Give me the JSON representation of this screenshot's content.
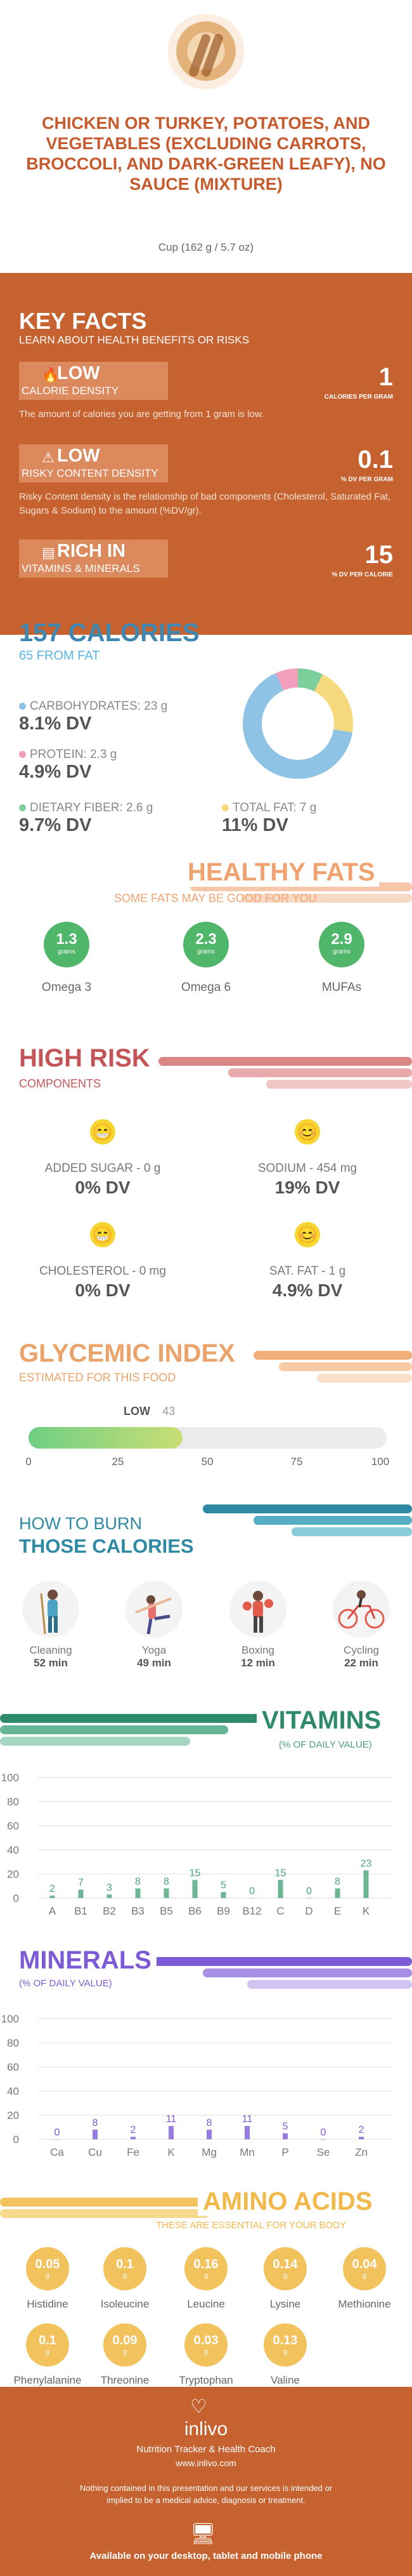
{
  "header": {
    "title": "Chicken or turkey, potatoes, and vegetables (excluding carrots, broccoli, and dark-green leafy), no sauce (mixture)",
    "serving": "Cup (162 g / 5.7 oz)"
  },
  "key_facts": {
    "title": "KEY FACTS",
    "subtitle": "LEARN ABOUT HEALTH BENEFITS OR RISKS",
    "items": [
      {
        "level": "LOW",
        "label": "CALORIE DENSITY",
        "value": "1",
        "unit": "CALORIES PER GRAM",
        "desc": "The amount of calories you are getting from 1 gram is low."
      },
      {
        "level": "LOW",
        "label": "RISKY CONTENT DENSITY",
        "value": "0.1",
        "unit": "% DV PER GRAM",
        "desc": "Risky Content density is the relationship of bad components (Cholesterol, Saturated Fat, Sugars & Sodium) to the amount (%DV/gr)."
      },
      {
        "level": "RICH IN",
        "label": "VITAMINS & MINERALS",
        "value": "15",
        "unit": "% DV PER CALORIE",
        "desc": ""
      }
    ]
  },
  "calories": {
    "title": "157 CALORIES",
    "subtitle": "65 FROM FAT",
    "macros": [
      {
        "label": "CARBOHYDRATES: 23 g",
        "dv": "8.1% DV",
        "color": "#8ec3e6"
      },
      {
        "label": "PROTEIN: 2.3 g",
        "dv": "4.9% DV",
        "color": "#f29fbd"
      },
      {
        "label": "DIETARY FIBER: 2.6 g",
        "dv": "9.7% DV",
        "color": "#7ccf9a"
      },
      {
        "label": "TOTAL FAT: 7 g",
        "dv": "11% DV",
        "color": "#f6d97c"
      }
    ],
    "donut": [
      {
        "name": "carbohydrates",
        "value": 23,
        "color": "#8ec3e6"
      },
      {
        "name": "protein",
        "value": 2.3,
        "color": "#f29fbd"
      },
      {
        "name": "fiber",
        "value": 2.6,
        "color": "#7ccf9a"
      },
      {
        "name": "fat",
        "value": 7,
        "color": "#f6d97c"
      }
    ]
  },
  "healthy_fats": {
    "title": "HEALTHY FATS",
    "subtitle": "SOME FATS MAY BE GOOD FOR YOU",
    "items": [
      {
        "value": "1.3",
        "unit": "grams",
        "name": "Omega 3"
      },
      {
        "value": "2.3",
        "unit": "grams",
        "name": "Omega 6"
      },
      {
        "value": "2.9",
        "unit": "grams",
        "name": "MUFAs"
      }
    ]
  },
  "high_risk": {
    "title": "HIGH RISK",
    "subtitle": "COMPONENTS",
    "items": [
      {
        "label": "ADDED SUGAR - 0 g",
        "dv": "0% DV",
        "icon": "grin-icon"
      },
      {
        "label": "SODIUM - 454 mg",
        "dv": "19% DV",
        "icon": "smile-icon"
      },
      {
        "label": "CHOLESTEROL - 0 mg",
        "dv": "0% DV",
        "icon": "grin-icon"
      },
      {
        "label": "SAT. FAT - 1 g",
        "dv": "4.9% DV",
        "icon": "smile-icon"
      }
    ]
  },
  "glycemic": {
    "title": "GLYCEMIC INDEX",
    "subtitle": "ESTIMATED FOR THIS FOOD",
    "level": "LOW",
    "value": 43,
    "value_text": "43",
    "ticks": [
      "0",
      "25",
      "50",
      "75",
      "100"
    ]
  },
  "burn": {
    "title_1": "HOW TO BURN",
    "title_2": "THOSE CALORIES",
    "activities": [
      {
        "name": "Cleaning",
        "minutes": "52 min"
      },
      {
        "name": "Yoga",
        "minutes": "49 min"
      },
      {
        "name": "Boxing",
        "minutes": "12 min"
      },
      {
        "name": "Cycling",
        "minutes": "22 min"
      }
    ]
  },
  "vitamins": {
    "title": "VITAMINS",
    "subtitle": "(% OF DAILY VALUE)"
  },
  "minerals": {
    "title": "MINERALS",
    "subtitle": "(% OF DAILY VALUE)"
  },
  "chart_data": [
    {
      "type": "bar",
      "title": "VITAMINS",
      "subtitle": "(% OF DAILY VALUE)",
      "categories": [
        "A",
        "B1",
        "B2",
        "B3",
        "B5",
        "B6",
        "B9",
        "B12",
        "C",
        "D",
        "E",
        "K"
      ],
      "values": [
        2,
        7,
        3,
        8,
        8,
        15,
        5,
        0,
        15,
        0,
        8,
        23
      ],
      "ylim": [
        0,
        100
      ],
      "yticks": [
        "0",
        "20",
        "40",
        "60",
        "80",
        "100"
      ],
      "color": "#4aa37a",
      "grid": true
    },
    {
      "type": "bar",
      "title": "MINERALS",
      "subtitle": "(% OF DAILY VALUE)",
      "categories": [
        "Ca",
        "Cu",
        "Fe",
        "K",
        "Mg",
        "Mn",
        "P",
        "Se",
        "Zn"
      ],
      "values": [
        0,
        8,
        2,
        11,
        8,
        11,
        5,
        0,
        2
      ],
      "ylim": [
        0,
        100
      ],
      "yticks": [
        "0",
        "20",
        "40",
        "60",
        "80",
        "100"
      ],
      "color": "#7d5ad6",
      "grid": true
    }
  ],
  "amino": {
    "title": "AMINO ACIDS",
    "subtitle": "THESE ARE ESSENTIAL FOR YOUR BODY",
    "unit": "g",
    "items": [
      {
        "value": "0.05",
        "name": "Histidine"
      },
      {
        "value": "0.1",
        "name": "Isoleucine"
      },
      {
        "value": "0.16",
        "name": "Leucine"
      },
      {
        "value": "0.14",
        "name": "Lysine"
      },
      {
        "value": "0.04",
        "name": "Methionine"
      },
      {
        "value": "0.1",
        "name": "Phenylalanine"
      },
      {
        "value": "0.09",
        "name": "Threonine"
      },
      {
        "value": "0.03",
        "name": "Tryptophan"
      },
      {
        "value": "0.13",
        "name": "Valine"
      }
    ]
  },
  "footer": {
    "brand": "inlivo",
    "tagline": "Nutrition Tracker & Health Coach",
    "url": "www.inlivo.com",
    "disclaimer": "Nothing contained in this presentation and our services is intended or implied to be a medical advice, diagnosis or treatment.",
    "available": "Available on your desktop, tablet and mobile phone"
  }
}
